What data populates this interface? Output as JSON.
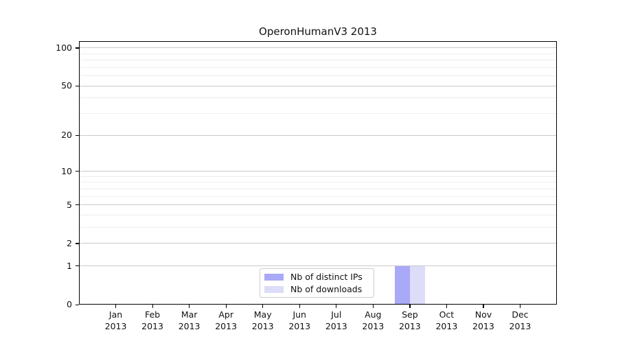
{
  "chart_data": {
    "type": "bar",
    "title": "OperonHumanV3 2013",
    "categories": [
      "Jan 2013",
      "Feb 2013",
      "Mar 2013",
      "Apr 2013",
      "May 2013",
      "Jun 2013",
      "Jul 2013",
      "Aug 2013",
      "Sep 2013",
      "Oct 2013",
      "Nov 2013",
      "Dec 2013"
    ],
    "series": [
      {
        "name": "Nb of distinct IPs",
        "color": "#a9a9f7",
        "values": [
          0,
          0,
          0,
          0,
          0,
          0,
          0,
          0,
          1,
          0,
          0,
          0
        ]
      },
      {
        "name": "Nb of downloads",
        "color": "#dddcf9",
        "values": [
          0,
          0,
          0,
          0,
          0,
          0,
          0,
          0,
          1,
          0,
          0,
          0
        ]
      }
    ],
    "xlabel": "",
    "ylabel": "",
    "y_axis": {
      "scale": "log1p",
      "major_ticks": [
        0,
        1,
        2,
        5,
        10,
        20,
        50,
        100
      ],
      "minor_ticks": [
        3,
        4,
        6,
        7,
        8,
        9,
        30,
        40,
        60,
        70,
        80,
        90
      ],
      "max": 113
    },
    "grid": {
      "major_color": "#c9c9c9",
      "minor_color": "#ededed"
    },
    "legend": {
      "position": "lower center"
    }
  }
}
